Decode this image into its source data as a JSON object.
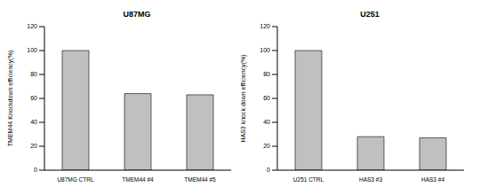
{
  "chart_data": [
    {
      "type": "bar",
      "title": "U87MG",
      "y_label": "TMEM44 Knockdown efficiency(%)",
      "categories": [
        "U87MG CTRL",
        "TMEM44 #4",
        "TMEM44 #5"
      ],
      "values": [
        100,
        64,
        63
      ],
      "color": "#c0c0c0",
      "ylim": [
        0,
        120
      ],
      "yticks": [
        0,
        20,
        40,
        60,
        80,
        100,
        120
      ],
      "grid": false
    },
    {
      "type": "bar",
      "title": "U251",
      "y_label": "HAS3 knock down efficiency(%)",
      "categories": [
        "U251 CTRL",
        "HAS3 #3",
        "HAS3 #4"
      ],
      "values": [
        100,
        28,
        27
      ],
      "color": "#c0c0c0",
      "ylim": [
        0,
        120
      ],
      "yticks": [
        0,
        20,
        40,
        60,
        80,
        100,
        120
      ],
      "grid": false
    }
  ]
}
